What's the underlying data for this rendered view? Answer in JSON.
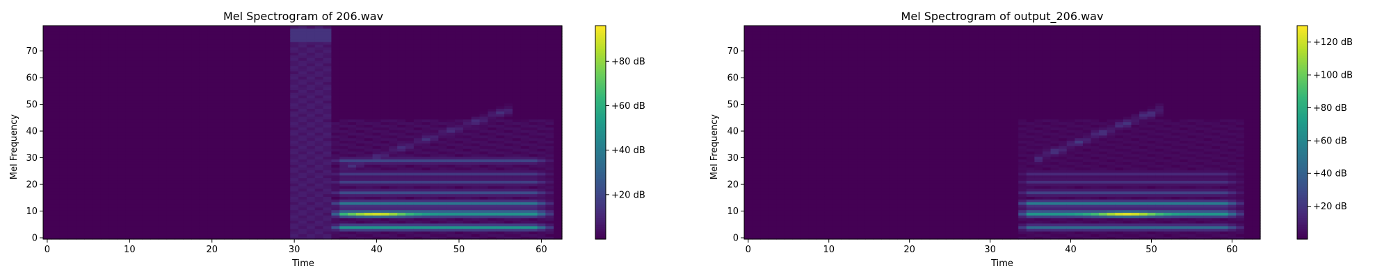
{
  "chart_data": [
    {
      "type": "heatmap",
      "title": "Mel Spectrogram of 206.wav",
      "xlabel": "Time",
      "ylabel": "Mel Frequency",
      "xlim": [
        -0.5,
        62.5
      ],
      "ylim": [
        -0.5,
        79.5
      ],
      "x_ticks": [
        0,
        10,
        20,
        30,
        40,
        50,
        60
      ],
      "y_ticks": [
        0,
        10,
        20,
        30,
        40,
        50,
        60,
        70
      ],
      "colorbar": {
        "range_db": [
          0,
          96
        ],
        "ticks": [
          20,
          40,
          60,
          80
        ],
        "tick_labels": [
          "+20 dB",
          "+40 dB",
          "+60 dB",
          "+80 dB"
        ]
      },
      "frames": 63,
      "mel_bins": 80,
      "onset_frame": 35,
      "end_frame": 61,
      "noise_burst": {
        "start": 30,
        "end": 35,
        "level_db": 8,
        "top_level_db": 14
      },
      "harmonic_levels": [
        {
          "bin": 9,
          "level_db": 90,
          "peak_frame": 40
        },
        {
          "bin": 4,
          "level_db": 50
        },
        {
          "bin": 13,
          "level_db": 38
        },
        {
          "bin": 10,
          "level_db": 30
        },
        {
          "bin": 17,
          "level_db": 22
        },
        {
          "bin": 21,
          "level_db": 18
        },
        {
          "bin": 24,
          "level_db": 16
        },
        {
          "bin": 29,
          "level_db": 20
        }
      ],
      "upper_formant_trace": {
        "start_frame": 36,
        "start_bin": 26,
        "end_frame": 56,
        "end_bin": 48,
        "level_db": 14
      }
    },
    {
      "type": "heatmap",
      "title": "Mel Spectrogram of output_206.wav",
      "xlabel": "Time",
      "ylabel": "Mel Frequency",
      "xlim": [
        -0.5,
        63.5
      ],
      "ylim": [
        -0.5,
        79.5
      ],
      "x_ticks": [
        0,
        10,
        20,
        30,
        40,
        50,
        60
      ],
      "y_ticks": [
        0,
        10,
        20,
        30,
        40,
        50,
        60,
        70
      ],
      "colorbar": {
        "range_db": [
          0,
          130
        ],
        "ticks": [
          20,
          40,
          60,
          80,
          100,
          120
        ],
        "tick_labels": [
          "+20 dB",
          "+40 dB",
          "+60 dB",
          "+80 dB",
          "+100 dB",
          "+120 dB"
        ]
      },
      "frames": 64,
      "mel_bins": 80,
      "onset_frame": 34,
      "end_frame": 61,
      "noise_burst": {
        "start": 0,
        "end": 0,
        "level_db": 0,
        "top_level_db": 0
      },
      "harmonic_levels": [
        {
          "bin": 9,
          "level_db": 125,
          "peak_frame": 47
        },
        {
          "bin": 4,
          "level_db": 45
        },
        {
          "bin": 13,
          "level_db": 55
        },
        {
          "bin": 10,
          "level_db": 35
        },
        {
          "bin": 17,
          "level_db": 25
        },
        {
          "bin": 21,
          "level_db": 18
        },
        {
          "bin": 24,
          "level_db": 15
        }
      ],
      "upper_formant_trace": {
        "start_frame": 36,
        "start_bin": 30,
        "end_frame": 51,
        "end_bin": 48,
        "level_db": 22
      }
    }
  ]
}
